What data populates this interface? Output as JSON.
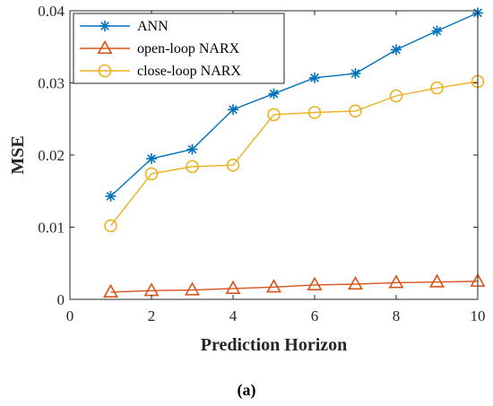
{
  "chart_data": {
    "type": "line",
    "xlabel": "Prediction Horizon",
    "ylabel": "MSE",
    "xlim": [
      0,
      10
    ],
    "ylim": [
      0,
      0.04
    ],
    "xticks": [
      0,
      2,
      4,
      6,
      8,
      10
    ],
    "xtick_labels": [
      "0",
      "2",
      "4",
      "6",
      "8",
      "10"
    ],
    "yticks": [
      0,
      0.01,
      0.02,
      0.03,
      0.04
    ],
    "ytick_labels": [
      "0",
      "0.01",
      "0.02",
      "0.03",
      "0.04"
    ],
    "grid": false,
    "legend_position": "top-left",
    "x": [
      1,
      2,
      3,
      4,
      5,
      6,
      7,
      8,
      9,
      10
    ],
    "series": [
      {
        "name": "ANN",
        "color": "#0072BD",
        "marker": "asterisk",
        "values": [
          0.0143,
          0.0195,
          0.0208,
          0.0263,
          0.0285,
          0.0307,
          0.0313,
          0.0346,
          0.0372,
          0.0397
        ]
      },
      {
        "name": "open-loop NARX",
        "color": "#D95319",
        "marker": "triangle",
        "values": [
          0.001,
          0.0012,
          0.0013,
          0.0015,
          0.0017,
          0.002,
          0.0021,
          0.0023,
          0.0024,
          0.0025
        ]
      },
      {
        "name": "close-loop NARX",
        "color": "#EDB120",
        "marker": "circle",
        "values": [
          0.0102,
          0.0174,
          0.0184,
          0.0186,
          0.0256,
          0.0259,
          0.0261,
          0.0282,
          0.0293,
          0.0302
        ]
      }
    ]
  },
  "caption": "(a)"
}
